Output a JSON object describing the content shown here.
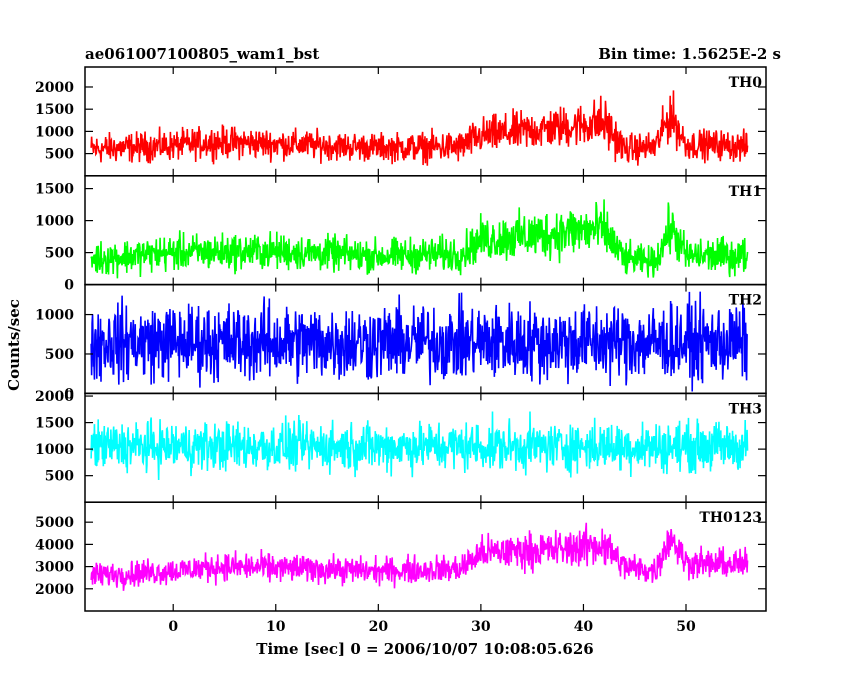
{
  "header": {
    "left_title": "ae061007100805_wam1_bst",
    "right_title": "Bin time: 1.5625E-2 s"
  },
  "chart_data": {
    "type": "line",
    "xlabel": "Time [sec] 0 = 2006/10/07 10:08:05.626",
    "ylabel": "Counts/sec",
    "xlim": [
      -8.6,
      57.8
    ],
    "x_ticks": [
      0,
      10,
      20,
      30,
      40,
      50
    ],
    "x_ticks_labels": [
      "0",
      "10",
      "20",
      "30",
      "40",
      "50"
    ],
    "x_data_range": [
      -8,
      56
    ],
    "bin_time": 0.015625,
    "panels": [
      {
        "name": "TH0",
        "color": "#ff0000",
        "ylim": [
          0,
          2450
        ],
        "y_ticks": [
          500,
          1000,
          1500,
          2000
        ],
        "y_ticks_labels": [
          "500",
          "1000",
          "1500",
          "2000"
        ],
        "profile_x": [
          -8,
          0,
          4,
          10,
          20,
          28,
          30,
          34,
          36,
          40,
          42,
          44,
          47,
          48.5,
          50,
          53,
          56
        ],
        "profile_mean": [
          600,
          680,
          760,
          720,
          640,
          650,
          900,
          1000,
          1050,
          1150,
          1200,
          600,
          650,
          1400,
          700,
          700,
          650
        ],
        "profile_amp": [
          450,
          450,
          480,
          450,
          420,
          480,
          550,
          600,
          600,
          650,
          800,
          450,
          450,
          800,
          450,
          450,
          450
        ]
      },
      {
        "name": "TH1",
        "color": "#00ff00",
        "ylim": [
          0,
          1700
        ],
        "y_ticks": [
          0,
          500,
          1000,
          1500
        ],
        "y_ticks_labels": [
          "0",
          "500",
          "1000",
          "1500"
        ],
        "profile_x": [
          -8,
          0,
          10,
          20,
          28,
          30,
          34,
          40,
          42,
          44,
          47,
          48.5,
          50,
          56
        ],
        "profile_mean": [
          400,
          500,
          520,
          450,
          480,
          700,
          750,
          850,
          850,
          400,
          350,
          900,
          450,
          450
        ],
        "profile_amp": [
          350,
          380,
          380,
          350,
          380,
          450,
          500,
          550,
          550,
          350,
          300,
          550,
          380,
          380
        ]
      },
      {
        "name": "TH2",
        "color": "#0000ff",
        "ylim": [
          0,
          1380
        ],
        "y_ticks": [
          0,
          500,
          1000
        ],
        "y_ticks_labels": [
          "0",
          "500",
          "1000"
        ],
        "profile_x": [
          -8,
          56
        ],
        "profile_mean": [
          650,
          650
        ],
        "profile_amp": [
          650,
          650
        ]
      },
      {
        "name": "TH3",
        "color": "#00ffff",
        "ylim": [
          0,
          2050
        ],
        "y_ticks": [
          500,
          1000,
          1500,
          2000
        ],
        "y_ticks_labels": [
          "500",
          "1000",
          "1500",
          "2000"
        ],
        "profile_x": [
          -8,
          56
        ],
        "profile_mean": [
          1050,
          1050
        ],
        "profile_amp": [
          620,
          620
        ]
      },
      {
        "name": "TH0123",
        "color": "#ff00ff",
        "ylim": [
          1000,
          5900
        ],
        "y_ticks": [
          2000,
          3000,
          4000,
          5000
        ],
        "y_ticks_labels": [
          "2000",
          "3000",
          "4000",
          "5000"
        ],
        "profile_x": [
          -8,
          0,
          4,
          10,
          20,
          28,
          30,
          34,
          38,
          42,
          44,
          47,
          48.5,
          50,
          53,
          56
        ],
        "profile_mean": [
          2600,
          2800,
          3000,
          2950,
          2800,
          2900,
          3600,
          3700,
          3800,
          4000,
          3000,
          2800,
          4400,
          3200,
          3100,
          3100
        ],
        "profile_amp": [
          800,
          800,
          850,
          850,
          800,
          850,
          1000,
          1100,
          1100,
          1300,
          900,
          800,
          1200,
          900,
          900,
          900
        ]
      }
    ]
  }
}
